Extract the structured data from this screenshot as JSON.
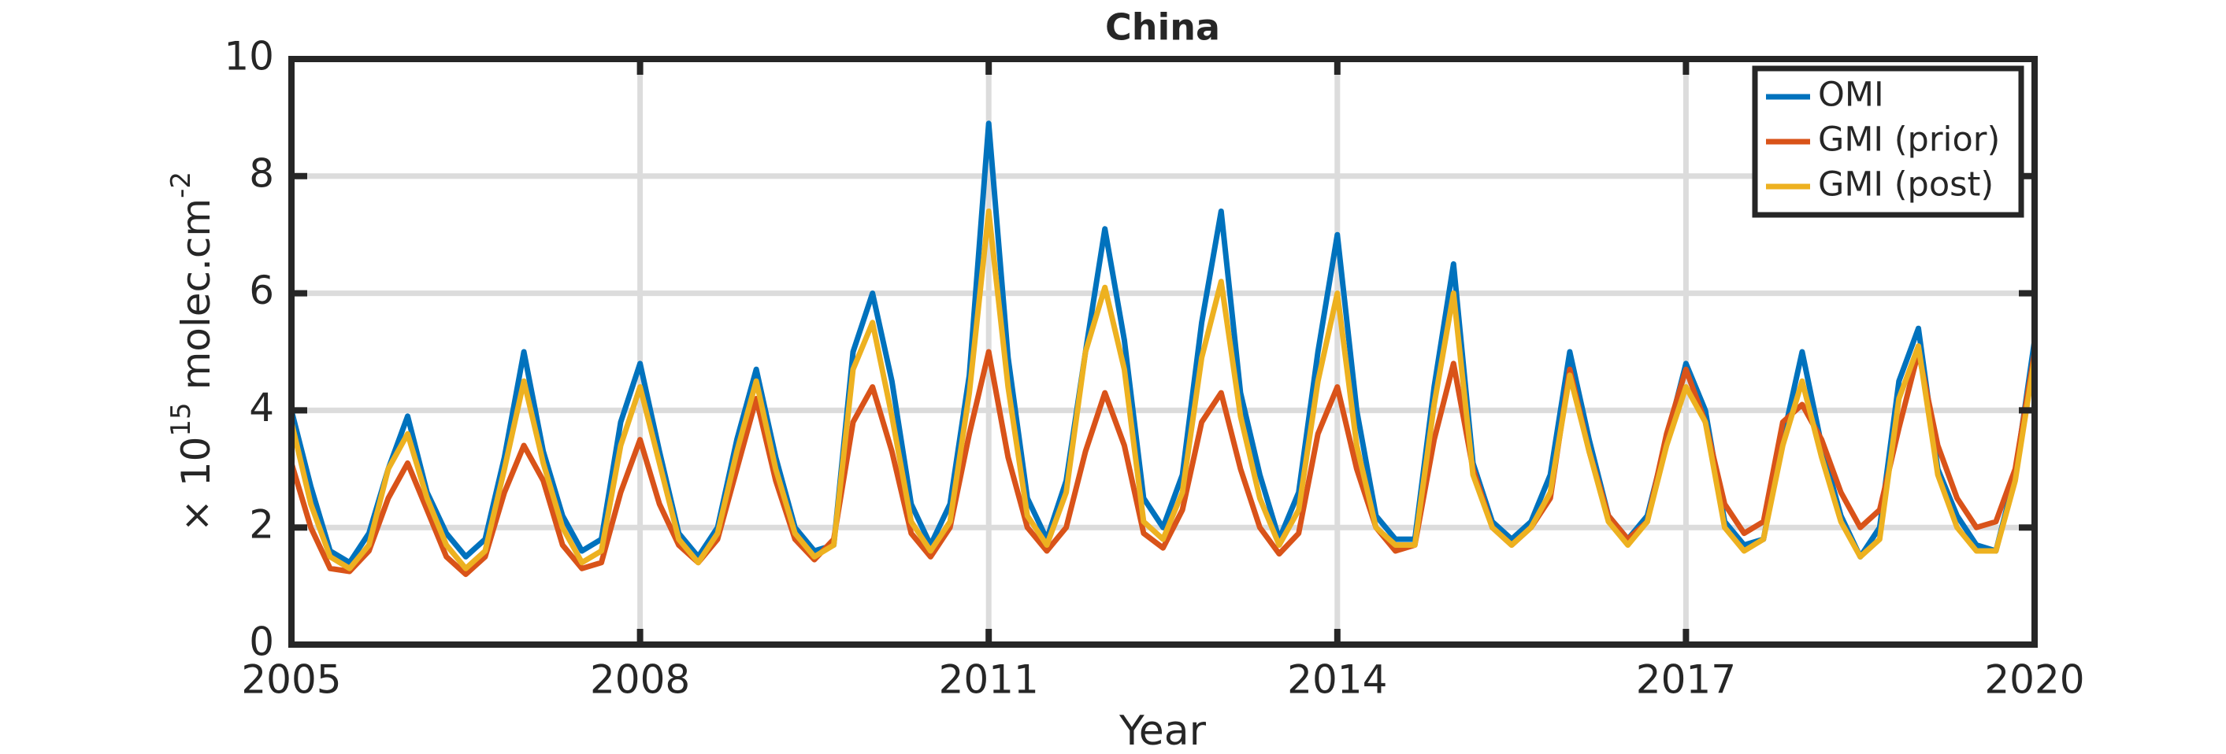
{
  "chart_data": {
    "type": "line",
    "title": "China",
    "xlabel": "Year",
    "ylabel": [
      "× 10",
      "15",
      " molec.cm",
      "-2"
    ],
    "xlim": [
      2005,
      2020
    ],
    "xticks": [
      2005,
      2008,
      2011,
      2014,
      2017,
      2020
    ],
    "ylim": [
      0,
      10
    ],
    "yticks": [
      0,
      2,
      4,
      6,
      8,
      10
    ],
    "grid": true,
    "legend": "northeast",
    "x": [
      2005,
      2005.167,
      2005.333,
      2005.5,
      2005.667,
      2005.833,
      2006,
      2006.167,
      2006.333,
      2006.5,
      2006.667,
      2006.833,
      2007,
      2007.167,
      2007.333,
      2007.5,
      2007.667,
      2007.833,
      2008,
      2008.167,
      2008.333,
      2008.5,
      2008.667,
      2008.833,
      2009,
      2009.167,
      2009.333,
      2009.5,
      2009.667,
      2009.833,
      2010,
      2010.167,
      2010.333,
      2010.5,
      2010.667,
      2010.833,
      2011,
      2011.167,
      2011.333,
      2011.5,
      2011.667,
      2011.833,
      2012,
      2012.167,
      2012.333,
      2012.5,
      2012.667,
      2012.833,
      2013,
      2013.167,
      2013.333,
      2013.5,
      2013.667,
      2013.833,
      2014,
      2014.167,
      2014.333,
      2014.5,
      2014.667,
      2014.833,
      2015,
      2015.167,
      2015.333,
      2015.5,
      2015.667,
      2015.833,
      2016,
      2016.167,
      2016.333,
      2016.5,
      2016.667,
      2016.833,
      2017,
      2017.167,
      2017.333,
      2017.5,
      2017.667,
      2017.833,
      2018,
      2018.167,
      2018.333,
      2018.5,
      2018.667,
      2018.833,
      2019,
      2019.167,
      2019.333,
      2019.5,
      2019.667,
      2019.833,
      2020
    ],
    "series": [
      {
        "name": "OMI",
        "color": "#0072bd",
        "values": [
          4.0,
          2.7,
          1.6,
          1.4,
          1.9,
          3.0,
          3.9,
          2.6,
          1.9,
          1.5,
          1.8,
          3.2,
          5.0,
          3.3,
          2.2,
          1.6,
          1.8,
          3.8,
          4.8,
          3.3,
          1.9,
          1.5,
          2.0,
          3.5,
          4.7,
          3.2,
          2.0,
          1.6,
          1.7,
          5.0,
          6.0,
          4.5,
          2.4,
          1.7,
          2.4,
          4.6,
          8.9,
          4.9,
          2.5,
          1.8,
          2.8,
          5.0,
          7.1,
          5.2,
          2.5,
          2.0,
          2.9,
          5.5,
          7.4,
          4.3,
          2.9,
          1.8,
          2.6,
          5.0,
          7.0,
          4.0,
          2.2,
          1.8,
          1.8,
          4.4,
          6.5,
          3.1,
          2.1,
          1.8,
          2.1,
          2.9,
          5.0,
          3.5,
          2.2,
          1.8,
          2.2,
          3.5,
          4.8,
          4.0,
          2.1,
          1.7,
          1.8,
          3.5,
          5.0,
          3.4,
          2.2,
          1.5,
          2.0,
          4.5,
          5.4,
          3.0,
          2.2,
          1.7,
          1.6,
          2.9,
          5.2
        ]
      },
      {
        "name": "GMI (prior)",
        "color": "#d95319",
        "values": [
          3.1,
          2.0,
          1.3,
          1.25,
          1.6,
          2.5,
          3.1,
          2.3,
          1.5,
          1.2,
          1.5,
          2.6,
          3.4,
          2.8,
          1.7,
          1.3,
          1.4,
          2.6,
          3.5,
          2.4,
          1.7,
          1.4,
          1.8,
          3.0,
          4.2,
          2.8,
          1.8,
          1.45,
          1.8,
          3.8,
          4.4,
          3.3,
          1.9,
          1.5,
          2.0,
          3.6,
          5.0,
          3.2,
          2.0,
          1.6,
          2.0,
          3.3,
          4.3,
          3.4,
          1.9,
          1.65,
          2.3,
          3.8,
          4.3,
          3.0,
          2.0,
          1.55,
          1.9,
          3.6,
          4.4,
          3.0,
          2.0,
          1.6,
          1.7,
          3.5,
          4.8,
          3.0,
          2.0,
          1.7,
          2.0,
          2.5,
          4.7,
          3.3,
          2.2,
          1.8,
          2.1,
          3.6,
          4.7,
          3.8,
          2.4,
          1.9,
          2.1,
          3.8,
          4.1,
          3.5,
          2.6,
          2.0,
          2.3,
          3.7,
          5.0,
          3.4,
          2.5,
          2.0,
          2.1,
          3.0,
          5.0
        ]
      },
      {
        "name": "GMI (post)",
        "color": "#edb120",
        "values": [
          3.8,
          2.4,
          1.5,
          1.3,
          1.7,
          3.0,
          3.6,
          2.5,
          1.7,
          1.3,
          1.6,
          3.0,
          4.5,
          3.1,
          2.0,
          1.4,
          1.6,
          3.4,
          4.4,
          3.1,
          1.8,
          1.4,
          1.9,
          3.3,
          4.5,
          3.0,
          1.9,
          1.5,
          1.7,
          4.7,
          5.5,
          3.9,
          2.1,
          1.6,
          2.1,
          4.3,
          7.4,
          4.4,
          2.2,
          1.7,
          2.6,
          5.0,
          6.1,
          4.7,
          2.1,
          1.8,
          2.6,
          4.9,
          6.2,
          3.9,
          2.5,
          1.7,
          2.3,
          4.5,
          6.0,
          3.4,
          2.0,
          1.7,
          1.7,
          4.1,
          6.0,
          2.9,
          2.0,
          1.7,
          2.0,
          2.6,
          4.6,
          3.3,
          2.1,
          1.7,
          2.1,
          3.4,
          4.4,
          3.8,
          2.0,
          1.6,
          1.8,
          3.4,
          4.5,
          3.2,
          2.1,
          1.5,
          1.8,
          4.2,
          5.1,
          2.9,
          2.0,
          1.6,
          1.6,
          2.8,
          4.9
        ]
      }
    ]
  }
}
